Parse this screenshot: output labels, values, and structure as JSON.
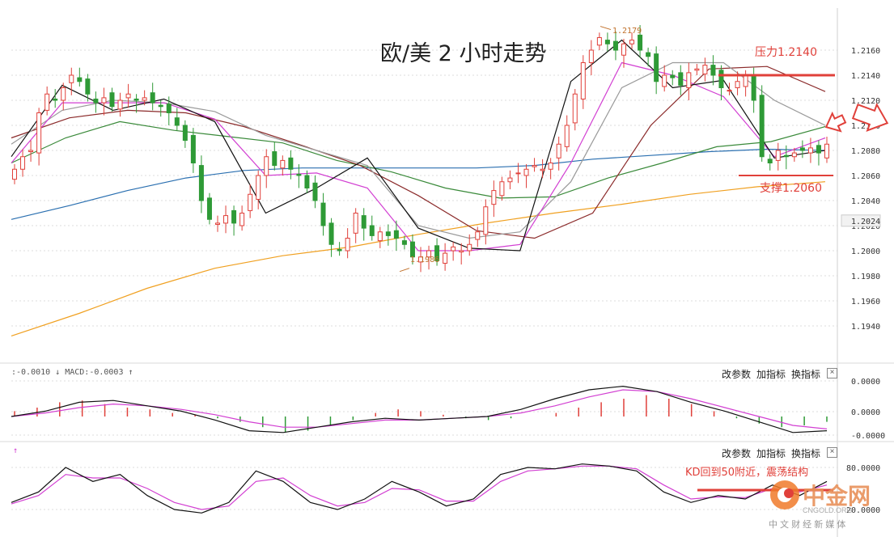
{
  "title": "欧/美 2 小时走势",
  "annotations": {
    "resistance": "压力1.2140",
    "support": "支撑1.2060",
    "high": "1.2179",
    "low": "1.1986",
    "kd_note": "KD回到50附近，震荡结构"
  },
  "macd_panel": {
    "indicator_label": ":-0.0010 ↓ MACD:-0.0003 ↑",
    "buttons": [
      "改参数",
      "加指标",
      "换指标"
    ],
    "close": "×"
  },
  "kd_panel": {
    "indicator_label": "↑",
    "buttons": [
      "改参数",
      "加指标",
      "换指标"
    ],
    "close": "×"
  },
  "watermark": {
    "brand": "中金网",
    "sub_en": "CNGOLD.ORG",
    "sub_cn": "中 文 财 经 新 媒 体"
  },
  "colors": {
    "up_candle": "#e0403a",
    "down_candle": "#2e9a36",
    "ma_black": "#111111",
    "ma_magenta": "#d23fd2",
    "ma_gray": "#9a9a9a",
    "ma_darkred": "#8b2a2a",
    "ma_green": "#3a8a3a",
    "ma_blue": "#2a6fb0",
    "ma_orange": "#f0a020",
    "level_red": "#e0403a"
  },
  "chart_data": [
    {
      "type": "candlestick",
      "title": "欧/美 2 小时走势",
      "y_ticks": [
        "1.2160",
        "1.2140",
        "1.2120",
        "1.2100",
        "1.2080",
        "1.2060",
        "1.2040",
        "1.2020",
        "1.2000",
        "1.1980",
        "1.1960",
        "1.1940"
      ],
      "ylim": [
        1.1925,
        1.2185
      ],
      "current_price": "1.2024",
      "levels": {
        "resistance": 1.214,
        "support": 1.206
      },
      "high_marker": 1.2179,
      "low_marker": 1.1986,
      "closes": [
        1.2065,
        1.2075,
        1.208,
        1.211,
        1.2125,
        1.212,
        1.213,
        1.214,
        1.2135,
        1.2125,
        1.2118,
        1.2122,
        1.2115,
        1.212,
        1.2125,
        1.212,
        1.2122,
        1.2118,
        1.2115,
        1.211,
        1.21,
        1.2088,
        1.207,
        1.204,
        1.2025,
        1.2022,
        1.2028,
        1.2022,
        1.203,
        1.2045,
        1.206,
        1.2075,
        1.2068,
        1.2072,
        1.2065,
        1.206,
        1.205,
        1.204,
        1.202,
        1.2005,
        1.2,
        1.201,
        1.203,
        1.2018,
        1.2012,
        1.2015,
        1.2012,
        1.201,
        1.2005,
        1.1995,
        1.1995,
        1.2,
        1.1992,
        1.1998,
        1.2003,
        1.2,
        1.2005,
        1.2015,
        1.2035,
        1.2048,
        1.2055,
        1.2058,
        1.2062,
        1.2065,
        1.2068,
        1.2065,
        1.207,
        1.2085,
        1.21,
        1.2125,
        1.215,
        1.216,
        1.217,
        1.2165,
        1.216,
        1.2165,
        1.2168,
        1.216,
        1.2155,
        1.2135,
        1.214,
        1.2138,
        1.2132,
        1.2142,
        1.2145,
        1.2148,
        1.214,
        1.213,
        1.2128,
        1.2135,
        1.214,
        1.212,
        1.2075,
        1.207,
        1.208,
        1.2075,
        1.2078,
        1.208,
        1.2082,
        1.2078,
        1.2085
      ],
      "ma_values": {
        "black": [
          1.2075,
          1.2132,
          1.2112,
          1.2121,
          1.2103,
          1.203,
          1.205,
          1.2074,
          1.2018,
          1.2002,
          1.2,
          1.2135,
          1.2168,
          1.213,
          1.2136,
          1.2074,
          1.208
        ],
        "magenta": [
          1.207,
          1.2118,
          1.2118,
          1.2118,
          1.2105,
          1.206,
          1.2062,
          1.205,
          1.2,
          1.2,
          1.2005,
          1.207,
          1.215,
          1.214,
          1.2123,
          1.2075,
          1.209
        ],
        "gray": [
          1.2085,
          1.2112,
          1.212,
          1.2118,
          1.2111,
          1.2092,
          1.208,
          1.2068,
          1.202,
          1.201,
          1.2015,
          1.2055,
          1.213,
          1.215,
          1.215,
          1.212,
          1.21
        ],
        "darkred": [
          1.209,
          1.2106,
          1.2112,
          1.211,
          1.2099,
          1.2084,
          1.2068,
          1.2044,
          1.2016,
          1.201,
          1.203,
          1.21,
          1.2145,
          1.2147,
          1.2127
        ],
        "green": [
          1.207,
          1.209,
          1.2103,
          1.2096,
          1.2091,
          1.2086,
          1.2072,
          1.2063,
          1.205,
          1.2042,
          1.2043,
          1.2058,
          1.207,
          1.2083,
          1.2087,
          1.2099
        ],
        "blue": [
          1.2025,
          1.2036,
          1.2048,
          1.2058,
          1.2064,
          1.2066,
          1.2066,
          1.2066,
          1.2066,
          1.2068,
          1.2073,
          1.2076,
          1.2079,
          1.2081,
          1.208
        ],
        "orange": [
          1.1932,
          1.195,
          1.197,
          1.1986,
          1.1996,
          1.2003,
          1.2013,
          1.2022,
          1.203,
          1.2037,
          1.2045,
          1.2051,
          1.2055
        ]
      }
    },
    {
      "type": "line",
      "title": "MACD",
      "y_ticks": [
        "0.0000",
        "0.0000",
        "-0.0000"
      ],
      "histogram": [
        0.3,
        0.5,
        0.8,
        0.9,
        0.7,
        0.5,
        0.4,
        0.2,
        0.1,
        -0.1,
        -0.3,
        -0.6,
        -0.9,
        -0.8,
        -0.5,
        -0.2,
        0.2,
        0.4,
        0.3,
        0.1,
        -0.1,
        -0.2,
        -0.1,
        0.0,
        0.2,
        0.5,
        0.8,
        1.0,
        1.2,
        1.0,
        0.7,
        0.3,
        -0.1,
        -0.4,
        -0.6,
        -0.5,
        -0.3
      ],
      "dif": [
        0.0,
        0.3,
        0.8,
        0.9,
        0.6,
        0.3,
        -0.2,
        -0.8,
        -0.9,
        -0.6,
        -0.3,
        -0.1,
        -0.2,
        -0.1,
        0.0,
        0.4,
        1.0,
        1.5,
        1.7,
        1.4,
        0.8,
        0.3,
        -0.3,
        -0.9,
        -0.8
      ],
      "dea": [
        0.0,
        0.2,
        0.5,
        0.7,
        0.6,
        0.4,
        0.1,
        -0.3,
        -0.6,
        -0.6,
        -0.4,
        -0.2,
        -0.2,
        -0.1,
        0.0,
        0.2,
        0.6,
        1.1,
        1.5,
        1.4,
        1.0,
        0.5,
        0.0,
        -0.5,
        -0.7
      ]
    },
    {
      "type": "line",
      "title": "KD",
      "y_ticks": [
        "80.0000",
        "20.0000"
      ],
      "k": [
        30,
        45,
        80,
        60,
        70,
        40,
        20,
        15,
        30,
        75,
        60,
        30,
        20,
        35,
        60,
        45,
        25,
        35,
        70,
        80,
        78,
        85,
        82,
        75,
        45,
        30,
        40,
        35,
        55,
        40,
        60
      ],
      "d": [
        28,
        40,
        70,
        65,
        65,
        50,
        30,
        20,
        25,
        60,
        65,
        40,
        25,
        30,
        50,
        48,
        32,
        32,
        60,
        75,
        78,
        82,
        82,
        78,
        55,
        35,
        38,
        37,
        50,
        45,
        55
      ]
    }
  ]
}
